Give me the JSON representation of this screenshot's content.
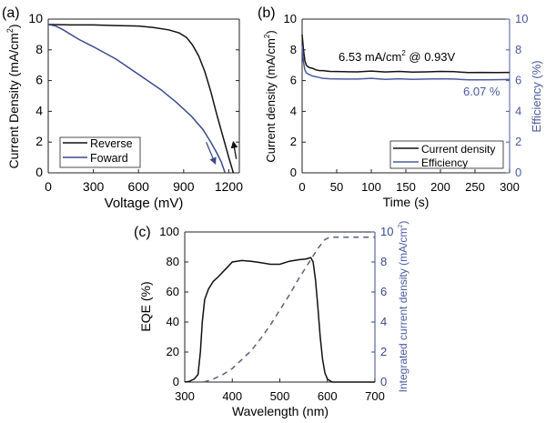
{
  "chart_data": [
    {
      "panel_label": "(a)",
      "type": "line",
      "xlabel": "Voltage (mV)",
      "ylabel": "Current Density (mA/cm",
      "ylabel_sup": "2",
      "ylabel_end": ")",
      "xlim": [
        0,
        1270
      ],
      "ylim": [
        0,
        10
      ],
      "xticks": [
        0,
        300,
        600,
        900,
        1200
      ],
      "yticks": [
        0,
        2,
        4,
        6,
        8,
        10
      ],
      "legend": "bottom-left",
      "series": [
        {
          "name": "Reverse",
          "color": "#111111",
          "x": [
            0,
            150,
            300,
            450,
            600,
            700,
            800,
            870,
            920,
            960,
            1000,
            1040,
            1080,
            1120,
            1160,
            1200,
            1230
          ],
          "y": [
            9.65,
            9.62,
            9.62,
            9.58,
            9.55,
            9.45,
            9.3,
            9.1,
            8.8,
            8.3,
            7.6,
            6.6,
            5.3,
            3.8,
            2.4,
            1.0,
            0
          ]
        },
        {
          "name": "Foward",
          "color": "#3a4a8c",
          "x": [
            0,
            50,
            100,
            200,
            300,
            450,
            600,
            750,
            850,
            950,
            1030,
            1080,
            1120,
            1150,
            1175
          ],
          "y": [
            9.65,
            9.55,
            9.3,
            8.7,
            8.2,
            7.4,
            6.4,
            5.4,
            4.6,
            3.7,
            2.8,
            2.0,
            1.3,
            0.7,
            0
          ]
        }
      ],
      "annotations": [
        {
          "type": "arrow",
          "color": "#3a4a8c",
          "from": [
            1050,
            2.0
          ],
          "to": [
            1110,
            0.6
          ]
        },
        {
          "type": "arrow",
          "color": "#111111",
          "from": [
            1250,
            0.9
          ],
          "to": [
            1230,
            2.0
          ]
        }
      ]
    },
    {
      "panel_label": "(b)",
      "type": "line",
      "xlabel": "Time (s)",
      "ylabel": "Current density (mA/cm",
      "ylabel_sup": "2",
      "ylabel_end": ")",
      "y2label": "Efficiency (%)",
      "xlim": [
        0,
        300
      ],
      "ylim": [
        0,
        10
      ],
      "y2lim": [
        0,
        10
      ],
      "xticks": [
        0,
        50,
        100,
        150,
        200,
        250,
        300
      ],
      "yticks": [
        0,
        2,
        4,
        6,
        8,
        10
      ],
      "y2ticks": [
        0,
        2,
        4,
        6,
        8,
        10
      ],
      "legend": "bottom-right",
      "annotation_current": "6.53 mA/cm",
      "annotation_current_sup": "2",
      "annotation_current_end": " @ 0.93V",
      "annotation_efficiency": "6.07 %",
      "series": [
        {
          "name": "Current density",
          "color": "#111111",
          "axis": "left",
          "x": [
            0,
            2,
            4,
            6,
            10,
            15,
            20,
            25,
            30,
            40,
            60,
            80,
            100,
            120,
            140,
            160,
            180,
            200,
            220,
            240,
            260,
            280,
            300
          ],
          "y": [
            9.0,
            8.0,
            7.3,
            7.0,
            6.85,
            6.8,
            6.7,
            6.65,
            6.65,
            6.6,
            6.58,
            6.57,
            6.62,
            6.56,
            6.6,
            6.55,
            6.57,
            6.6,
            6.58,
            6.52,
            6.53,
            6.52,
            6.53
          ]
        },
        {
          "name": "Efficiency",
          "color": "#4a5aa0",
          "axis": "right",
          "x": [
            0,
            2,
            4,
            6,
            10,
            15,
            20,
            25,
            30,
            40,
            60,
            80,
            100,
            120,
            140,
            160,
            180,
            200,
            220,
            240,
            260,
            280,
            300
          ],
          "y": [
            8.3,
            7.2,
            6.7,
            6.5,
            6.4,
            6.3,
            6.25,
            6.2,
            6.15,
            6.12,
            6.1,
            6.1,
            6.15,
            6.08,
            6.12,
            6.08,
            6.1,
            6.12,
            6.1,
            6.05,
            6.05,
            6.06,
            6.07
          ]
        }
      ]
    },
    {
      "panel_label": "(c)",
      "type": "line",
      "xlabel": "Wavelength (nm)",
      "ylabel": "EQE (%)",
      "y2label": "Integrated current density (mA/cm",
      "y2label_sup": "2",
      "y2label_end": ")",
      "xlim": [
        300,
        700
      ],
      "ylim": [
        0,
        100
      ],
      "y2lim": [
        0,
        10
      ],
      "xticks": [
        300,
        400,
        500,
        600,
        700
      ],
      "yticks": [
        0,
        20,
        40,
        60,
        80,
        100
      ],
      "y2ticks": [
        0,
        2,
        4,
        6,
        8,
        10
      ],
      "series": [
        {
          "name": "EQE",
          "color": "#111111",
          "axis": "left",
          "style": "solid",
          "x": [
            300,
            310,
            320,
            328,
            333,
            337,
            342,
            350,
            360,
            370,
            385,
            400,
            420,
            440,
            460,
            480,
            500,
            520,
            540,
            555,
            565,
            570,
            575,
            580,
            585,
            590,
            595,
            600,
            610,
            700
          ],
          "y": [
            0,
            0.5,
            2,
            5,
            20,
            40,
            55,
            62,
            67,
            70,
            75,
            80,
            81,
            80.5,
            79.5,
            78.5,
            78.5,
            80.5,
            81.5,
            82,
            83,
            80,
            68,
            50,
            30,
            15,
            6,
            2,
            0,
            0
          ]
        },
        {
          "name": "Integrated current density",
          "color": "#5a5f80",
          "axis": "right",
          "style": "dashed",
          "x": [
            340,
            360,
            380,
            400,
            420,
            440,
            460,
            480,
            500,
            520,
            540,
            560,
            580,
            595,
            605,
            700
          ],
          "y": [
            0,
            0.2,
            0.5,
            0.9,
            1.5,
            2.1,
            2.9,
            3.8,
            4.8,
            5.8,
            6.9,
            7.9,
            8.9,
            9.5,
            9.65,
            9.65
          ]
        }
      ]
    }
  ]
}
